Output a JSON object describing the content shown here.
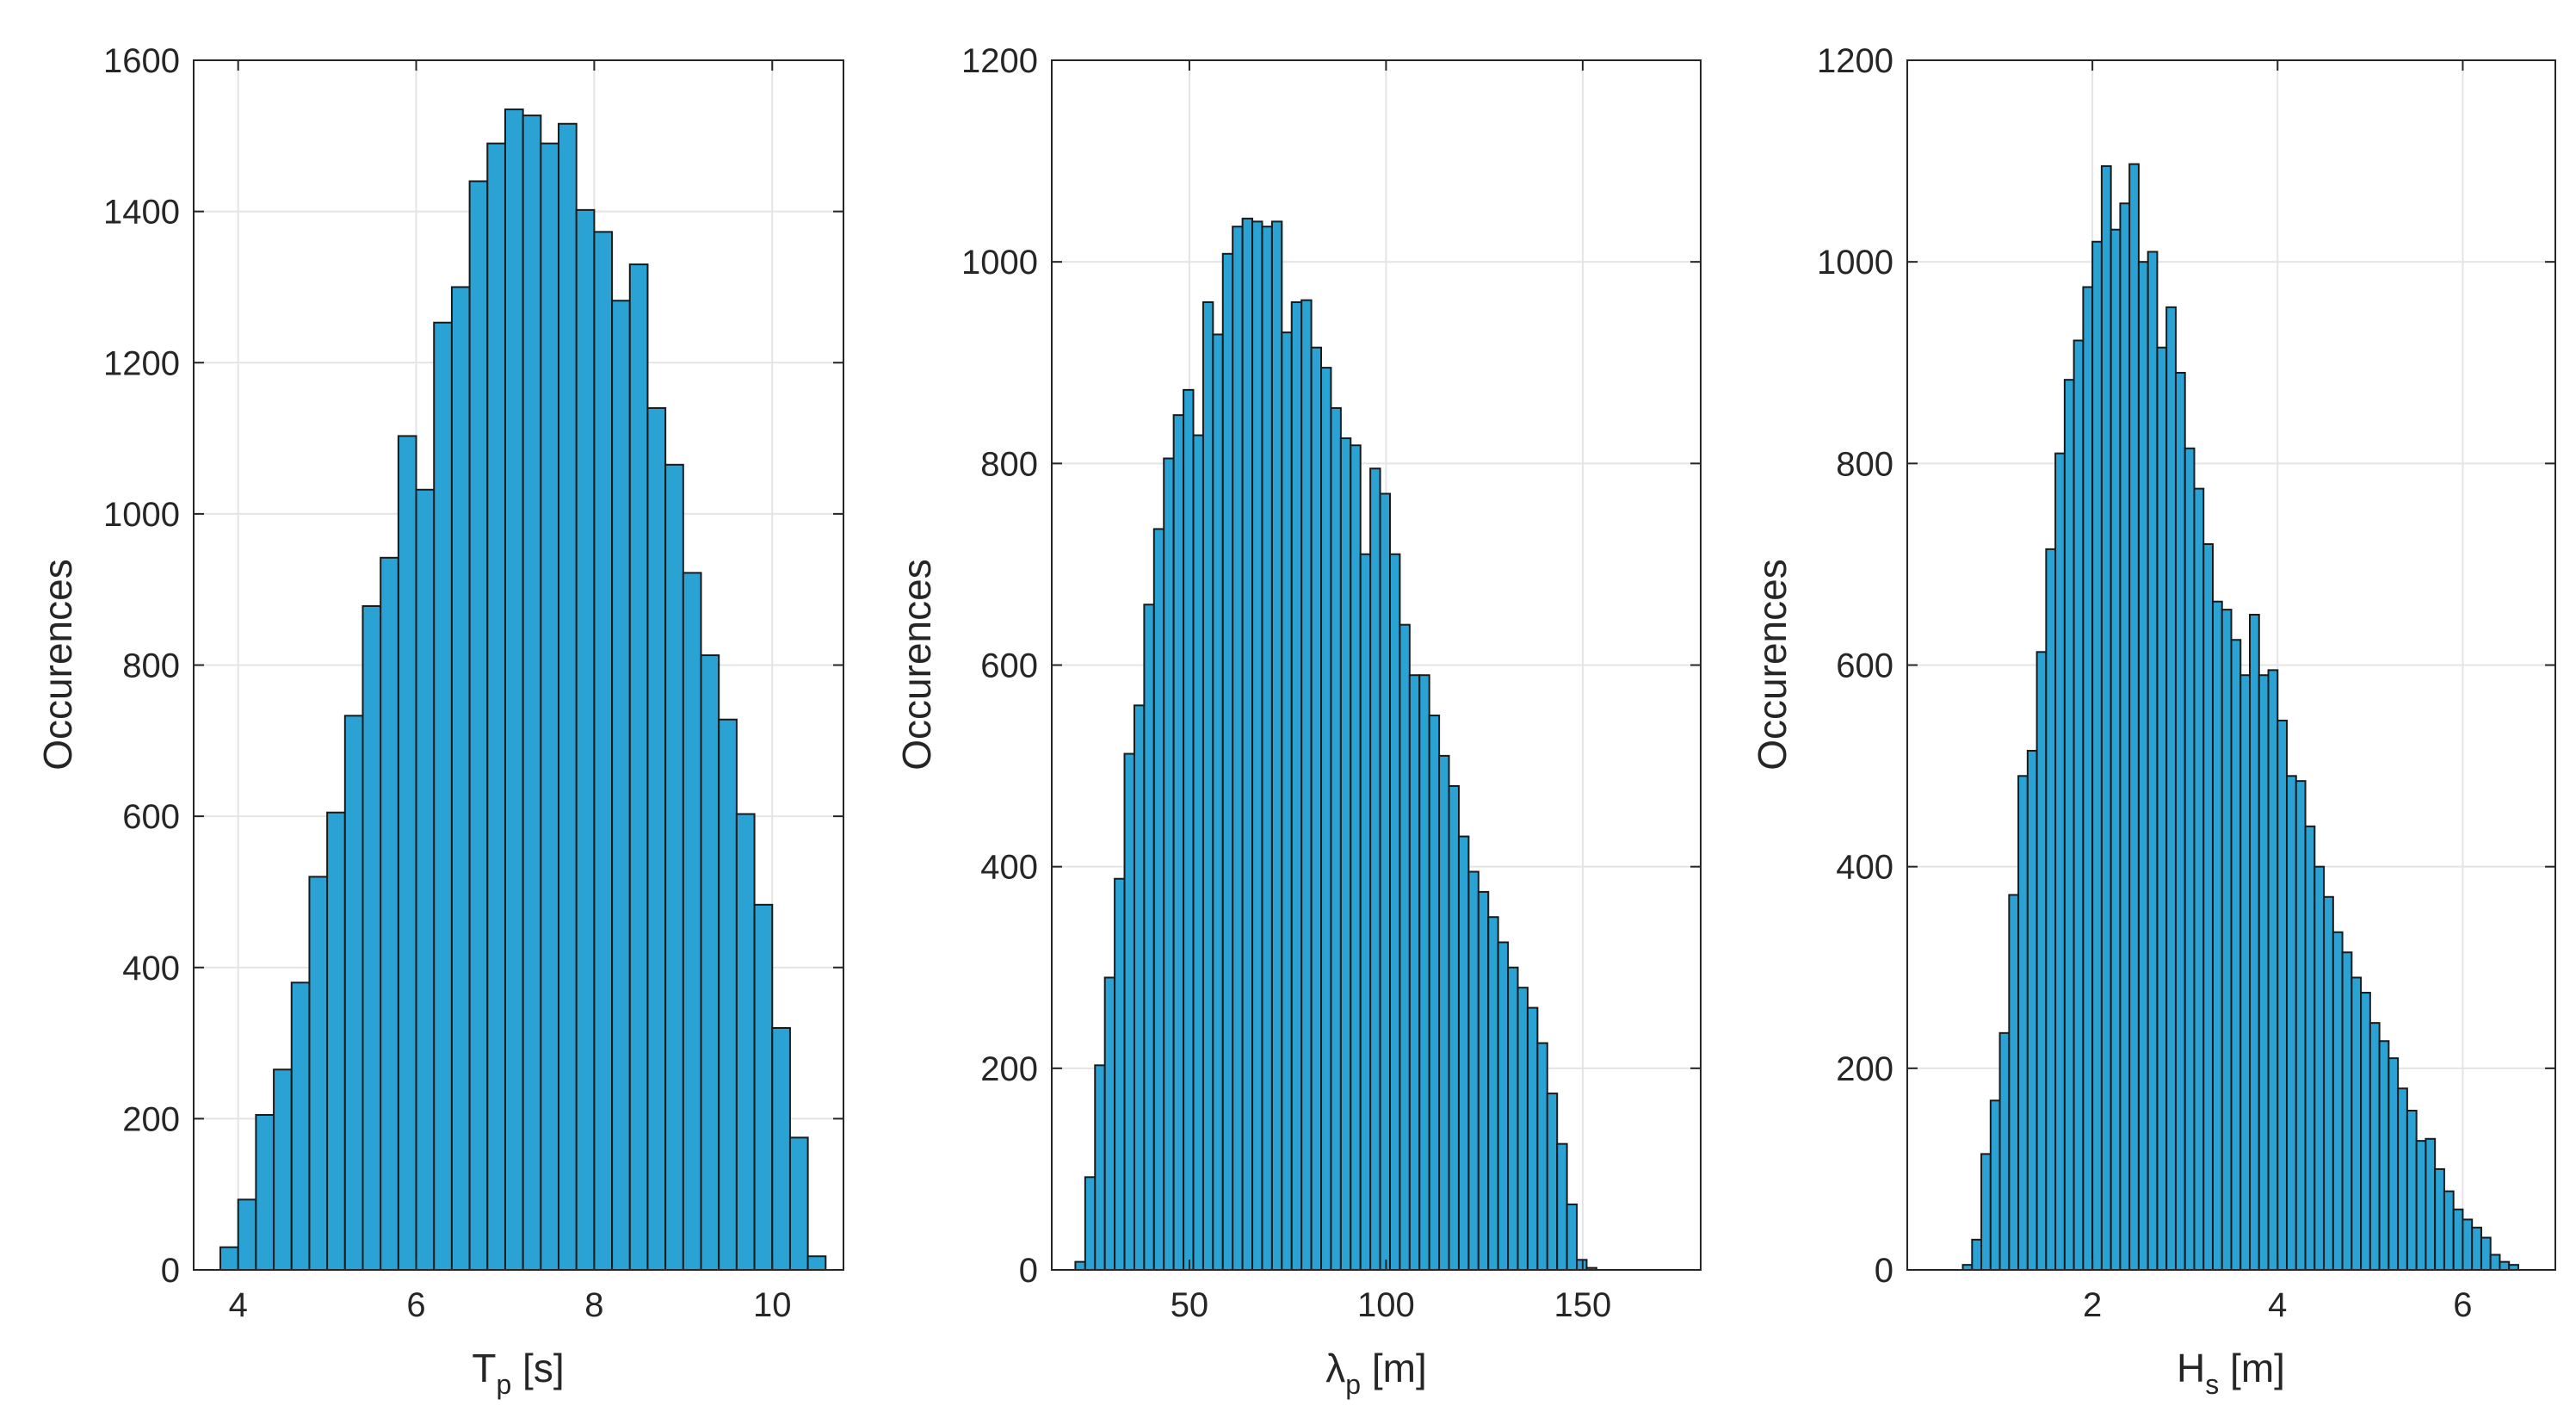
{
  "chart_data": [
    {
      "type": "bar",
      "xlabel_main": "T",
      "xlabel_sub": "p",
      "xlabel_unit": " [s]",
      "ylabel": "Occurences",
      "xlim": [
        3.5,
        10.8
      ],
      "ylim": [
        0,
        1600
      ],
      "xticks": [
        4,
        6,
        8,
        10
      ],
      "yticks": [
        0,
        200,
        400,
        600,
        800,
        1000,
        1200,
        1400,
        1600
      ],
      "grid": true,
      "bar_color": "#2aa3d4",
      "bin_start": 3.8,
      "bin_width": 0.2,
      "values": [
        30,
        93,
        205,
        265,
        380,
        520,
        605,
        733,
        878,
        942,
        1103,
        1032,
        1253,
        1300,
        1440,
        1490,
        1535,
        1527,
        1490,
        1516,
        1402,
        1373,
        1282,
        1330,
        1140,
        1065,
        922,
        813,
        728,
        603,
        483,
        320,
        175,
        18
      ]
    },
    {
      "type": "bar",
      "xlabel_main": "λ",
      "xlabel_sub": "p",
      "xlabel_unit": " [m]",
      "ylabel": "Occurences",
      "xlim": [
        15,
        180
      ],
      "ylim": [
        0,
        1200
      ],
      "xticks": [
        50,
        100,
        150
      ],
      "yticks": [
        0,
        200,
        400,
        600,
        800,
        1000,
        1200
      ],
      "grid": true,
      "bar_color": "#2aa3d4",
      "bin_start": 21,
      "bin_width": 2.5,
      "values": [
        8,
        92,
        203,
        290,
        388,
        512,
        560,
        660,
        735,
        805,
        848,
        873,
        828,
        960,
        928,
        1008,
        1035,
        1043,
        1040,
        1035,
        1040,
        930,
        960,
        962,
        915,
        895,
        855,
        825,
        818,
        710,
        795,
        770,
        710,
        640,
        590,
        590,
        550,
        510,
        480,
        430,
        395,
        375,
        350,
        325,
        300,
        280,
        260,
        225,
        175,
        125,
        65,
        10,
        2
      ]
    },
    {
      "type": "bar",
      "xlabel_main": "H",
      "xlabel_sub": "s",
      "xlabel_unit": " [m]",
      "ylabel": "Occurences",
      "xlim": [
        0,
        7
      ],
      "ylim": [
        0,
        1200
      ],
      "xticks": [
        2,
        4,
        6
      ],
      "yticks": [
        0,
        200,
        400,
        600,
        800,
        1000,
        1200
      ],
      "grid": true,
      "bar_color": "#2aa3d4",
      "bin_start": 0.6,
      "bin_width": 0.1,
      "values": [
        5,
        30,
        115,
        168,
        235,
        372,
        490,
        515,
        613,
        715,
        810,
        883,
        922,
        975,
        1020,
        1095,
        1032,
        1058,
        1097,
        1000,
        1010,
        915,
        955,
        890,
        815,
        775,
        720,
        663,
        655,
        625,
        590,
        650,
        590,
        595,
        545,
        490,
        485,
        440,
        400,
        370,
        335,
        315,
        290,
        275,
        245,
        227,
        210,
        180,
        158,
        128,
        130,
        100,
        78,
        60,
        50,
        42,
        32,
        15,
        8,
        5
      ]
    }
  ]
}
